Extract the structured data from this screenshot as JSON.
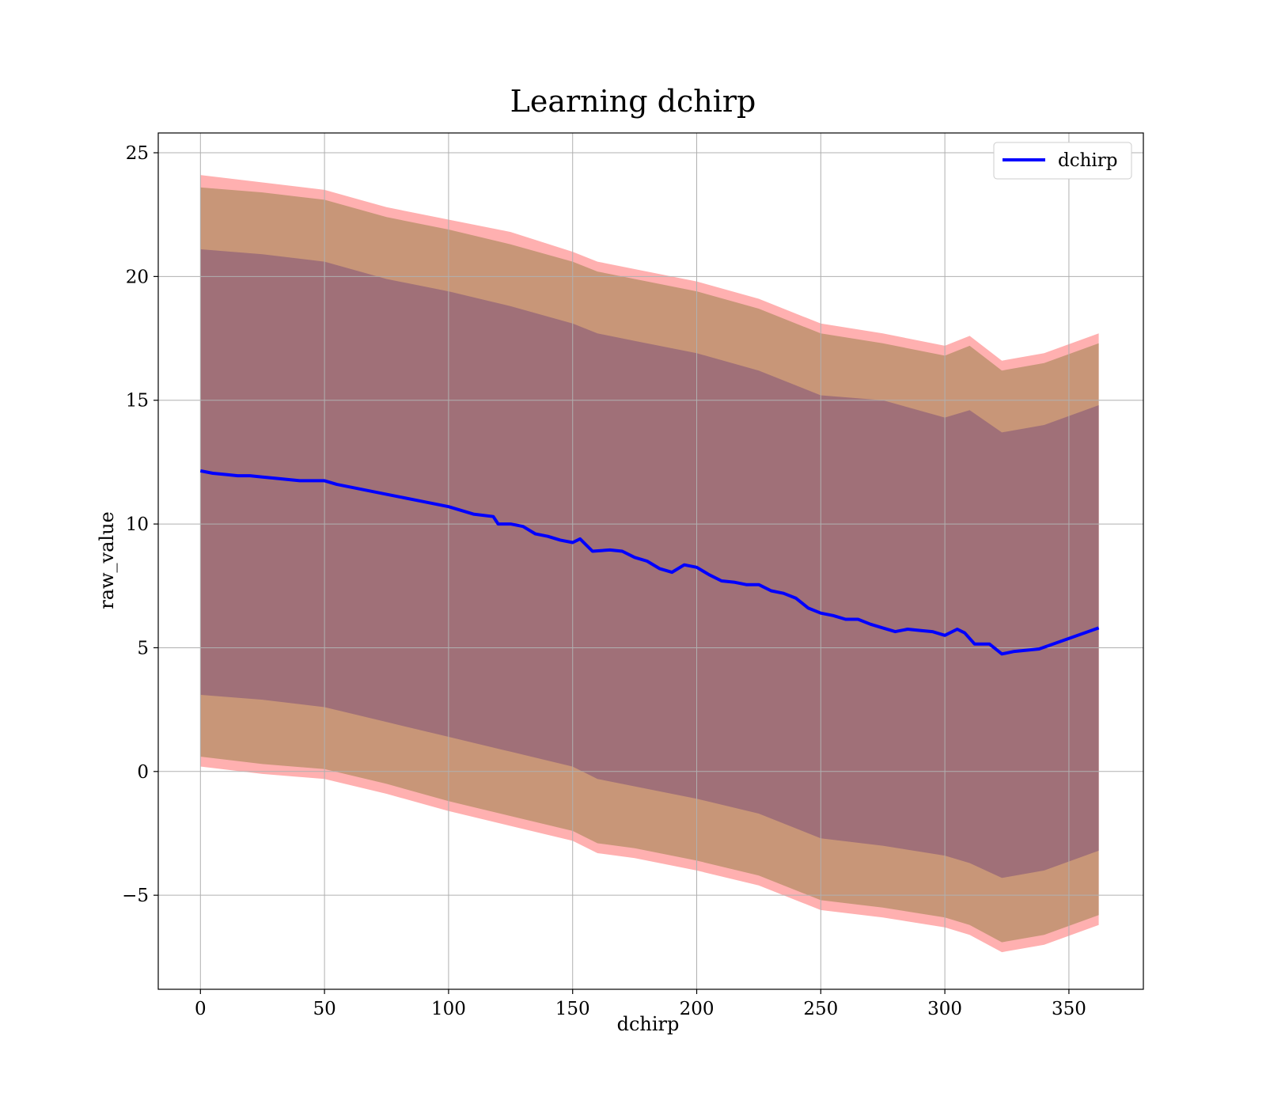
{
  "chart_data": {
    "type": "line",
    "title": "Learning dchirp",
    "xlabel": "dchirp",
    "ylabel": "raw_value",
    "xlim": [
      -17,
      380
    ],
    "ylim": [
      -8.8,
      25.8
    ],
    "xticks": [
      0,
      50,
      100,
      150,
      200,
      250,
      300,
      350
    ],
    "yticks": [
      -5,
      0,
      5,
      10,
      15,
      20,
      25
    ],
    "ytick_labels": [
      "−5",
      "0",
      "5",
      "10",
      "15",
      "20",
      "25"
    ],
    "grid": true,
    "legend": {
      "position": "upper-right",
      "entries": [
        "dchirp"
      ]
    },
    "colors": {
      "line": "#0000ff",
      "band_outer": "#ffb0b0",
      "band_middle": "#c89678",
      "band_inner": "#a07078"
    },
    "series": [
      {
        "name": "dchirp",
        "x": [
          0,
          5,
          10,
          15,
          20,
          25,
          30,
          40,
          50,
          55,
          60,
          70,
          80,
          90,
          100,
          110,
          118,
          120,
          125,
          130,
          135,
          140,
          145,
          150,
          153,
          158,
          165,
          170,
          175,
          180,
          185,
          190,
          195,
          200,
          205,
          210,
          215,
          220,
          225,
          230,
          235,
          240,
          245,
          250,
          255,
          260,
          265,
          270,
          275,
          280,
          285,
          290,
          295,
          300,
          305,
          308,
          312,
          318,
          323,
          328,
          338,
          362
        ],
        "y": [
          12.15,
          12.05,
          12.0,
          11.95,
          11.95,
          11.9,
          11.85,
          11.75,
          11.75,
          11.6,
          11.5,
          11.3,
          11.1,
          10.9,
          10.7,
          10.4,
          10.3,
          10.0,
          10.0,
          9.9,
          9.6,
          9.5,
          9.35,
          9.25,
          9.4,
          8.9,
          8.95,
          8.9,
          8.65,
          8.5,
          8.2,
          8.05,
          8.35,
          8.25,
          7.95,
          7.7,
          7.65,
          7.55,
          7.55,
          7.3,
          7.2,
          7.0,
          6.6,
          6.4,
          6.3,
          6.15,
          6.15,
          5.95,
          5.8,
          5.65,
          5.75,
          5.7,
          5.65,
          5.5,
          5.75,
          5.6,
          5.15,
          5.15,
          4.75,
          4.85,
          4.95,
          5.8
        ]
      }
    ],
    "bands": [
      {
        "x": [
          0,
          25,
          50,
          75,
          100,
          125,
          150,
          160,
          175,
          200,
          225,
          250,
          275,
          300,
          310,
          323,
          340,
          362
        ],
        "upper": [
          24.1,
          23.8,
          23.5,
          22.8,
          22.3,
          21.8,
          21.0,
          20.6,
          20.3,
          19.8,
          19.1,
          18.1,
          17.7,
          17.2,
          17.6,
          16.6,
          16.9,
          17.7
        ],
        "lower": [
          0.2,
          -0.1,
          -0.3,
          -0.9,
          -1.6,
          -2.2,
          -2.8,
          -3.3,
          -3.5,
          -4.0,
          -4.6,
          -5.6,
          -5.9,
          -6.3,
          -6.6,
          -7.3,
          -7.0,
          -6.2
        ]
      },
      {
        "x": [
          0,
          25,
          50,
          75,
          100,
          125,
          150,
          160,
          175,
          200,
          225,
          250,
          275,
          300,
          310,
          323,
          340,
          362
        ],
        "upper": [
          23.6,
          23.4,
          23.1,
          22.4,
          21.9,
          21.3,
          20.6,
          20.2,
          19.9,
          19.4,
          18.7,
          17.7,
          17.3,
          16.8,
          17.2,
          16.2,
          16.5,
          17.3
        ],
        "lower": [
          0.6,
          0.3,
          0.1,
          -0.5,
          -1.2,
          -1.8,
          -2.4,
          -2.9,
          -3.1,
          -3.6,
          -4.2,
          -5.2,
          -5.5,
          -5.9,
          -6.2,
          -6.9,
          -6.6,
          -5.8
        ]
      },
      {
        "x": [
          0,
          25,
          50,
          75,
          100,
          125,
          150,
          160,
          175,
          200,
          225,
          250,
          275,
          300,
          310,
          323,
          340,
          362
        ],
        "upper": [
          21.1,
          20.9,
          20.6,
          19.9,
          19.4,
          18.8,
          18.1,
          17.7,
          17.4,
          16.9,
          16.2,
          15.2,
          15.0,
          14.3,
          14.6,
          13.7,
          14.0,
          14.8
        ],
        "lower": [
          3.1,
          2.9,
          2.6,
          2.0,
          1.4,
          0.8,
          0.2,
          -0.3,
          -0.6,
          -1.1,
          -1.7,
          -2.7,
          -3.0,
          -3.4,
          -3.7,
          -4.3,
          -4.0,
          -3.2
        ]
      }
    ]
  }
}
